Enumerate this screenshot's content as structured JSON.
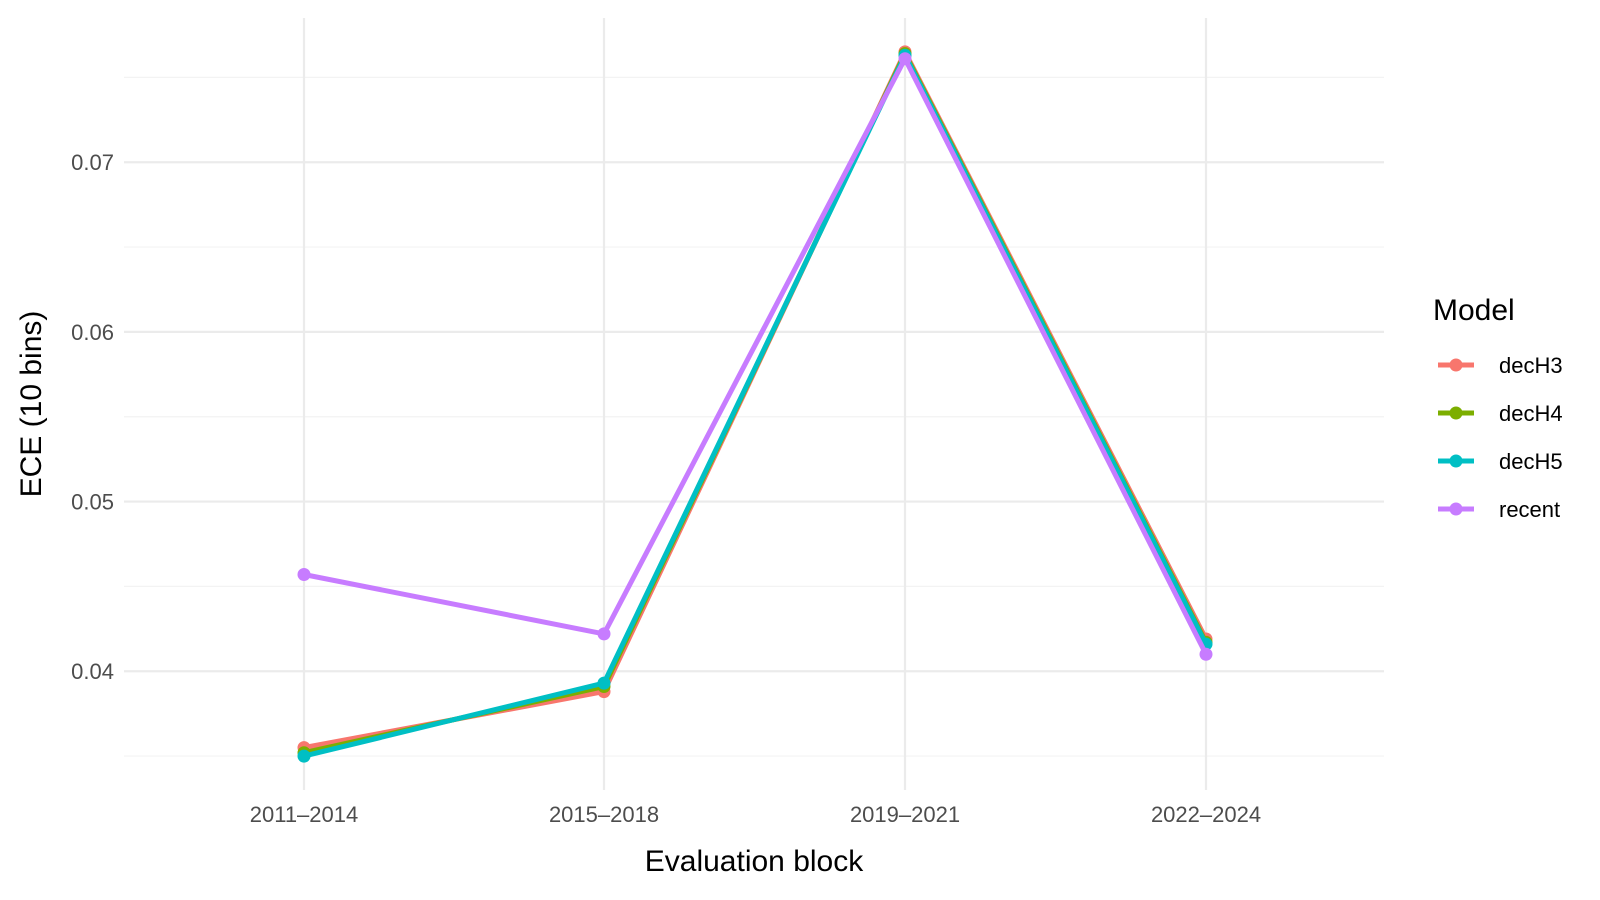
{
  "chart_data": {
    "type": "line",
    "title": "",
    "xlabel": "Evaluation block",
    "ylabel": "ECE (10 bins)",
    "categories": [
      "2011–2014",
      "2015–2018",
      "2019–2021",
      "2022–2024"
    ],
    "yticks": [
      0.04,
      0.05,
      0.06,
      0.07
    ],
    "ytick_labels": [
      "0.04",
      "0.05",
      "0.06",
      "0.07"
    ],
    "ylim": [
      0.033,
      0.0785
    ],
    "grid": true,
    "legend": {
      "title": "Model",
      "position": "right"
    },
    "series": [
      {
        "name": "decH3",
        "color": "#F8766D",
        "values": [
          0.0355,
          0.0388,
          0.0765,
          0.0419
        ]
      },
      {
        "name": "decH4",
        "color": "#7CAE00",
        "values": [
          0.0352,
          0.0391,
          0.0764,
          0.0417
        ]
      },
      {
        "name": "decH5",
        "color": "#00BFC4",
        "values": [
          0.035,
          0.0393,
          0.0763,
          0.0416
        ]
      },
      {
        "name": "recent",
        "color": "#C77CFF",
        "values": [
          0.0457,
          0.0422,
          0.0761,
          0.041
        ]
      }
    ]
  }
}
